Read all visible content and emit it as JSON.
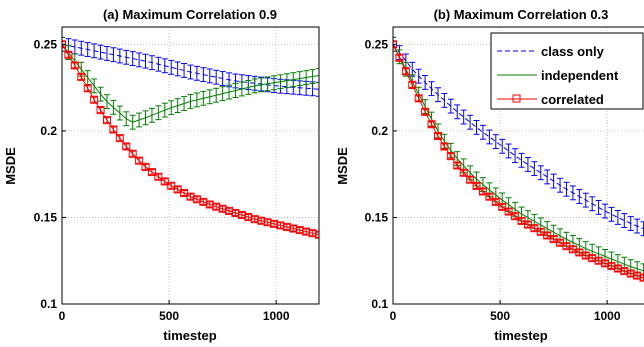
{
  "chart_data": [
    {
      "type": "line",
      "title": "(a) Maximum Correlation 0.9",
      "xlabel": "timestep",
      "ylabel": "MSDE",
      "xlim": [
        0,
        1200
      ],
      "ylim": [
        0.1,
        0.26
      ],
      "xticks": [
        0,
        500,
        1000
      ],
      "yticks": [
        0.1,
        0.15,
        0.2,
        0.25
      ],
      "ytick_labels": [
        "0.1",
        "0.15",
        "0.2",
        "0.25"
      ],
      "grid": true,
      "legend": null,
      "series": [
        {
          "name": "class only",
          "color": "#0000ff",
          "style": "dashed-errorbar",
          "x": [
            0,
            200,
            400,
            600,
            800,
            1000,
            1200
          ],
          "y": [
            0.25,
            0.245,
            0.24,
            0.234,
            0.229,
            0.226,
            0.224
          ],
          "err": 0.004
        },
        {
          "name": "independent",
          "color": "#008000",
          "style": "solid-errorbar",
          "x": [
            0,
            100,
            200,
            300,
            330,
            400,
            500,
            600,
            700,
            800,
            900,
            1000,
            1100,
            1200
          ],
          "y": [
            0.25,
            0.234,
            0.218,
            0.207,
            0.205,
            0.208,
            0.213,
            0.217,
            0.22,
            0.223,
            0.226,
            0.228,
            0.23,
            0.232
          ],
          "err": 0.004
        },
        {
          "name": "correlated",
          "color": "#ff0000",
          "style": "square-markers",
          "x": [
            0,
            50,
            100,
            150,
            200,
            250,
            300,
            350,
            400,
            500,
            600,
            700,
            800,
            900,
            1000,
            1100,
            1200
          ],
          "y": [
            0.25,
            0.24,
            0.229,
            0.218,
            0.208,
            0.199,
            0.191,
            0.184,
            0.178,
            0.169,
            0.162,
            0.157,
            0.153,
            0.149,
            0.146,
            0.143,
            0.14
          ],
          "err": 0.0015
        }
      ]
    },
    {
      "type": "line",
      "title": "(b) Maximum Correlation 0.3",
      "xlabel": "timestep",
      "ylabel": "MSDE",
      "xlim": [
        0,
        1200
      ],
      "ylim": [
        0.1,
        0.26
      ],
      "xticks": [
        0,
        500,
        1000
      ],
      "yticks": [
        0.1,
        0.15,
        0.2,
        0.25
      ],
      "ytick_labels": [
        "0.1",
        "0.15",
        "0.2",
        "0.25"
      ],
      "grid": true,
      "legend": "top-right",
      "series": [
        {
          "name": "class only",
          "color": "#0000ff",
          "style": "dashed-errorbar",
          "x": [
            0,
            100,
            200,
            300,
            400,
            500,
            600,
            700,
            800,
            900,
            1000,
            1100,
            1200
          ],
          "y": [
            0.25,
            0.234,
            0.222,
            0.211,
            0.201,
            0.192,
            0.183,
            0.175,
            0.167,
            0.16,
            0.153,
            0.147,
            0.142
          ],
          "err": 0.004
        },
        {
          "name": "independent",
          "color": "#008000",
          "style": "solid-errorbar",
          "x": [
            0,
            50,
            100,
            150,
            200,
            250,
            300,
            350,
            400,
            500,
            600,
            700,
            800,
            900,
            1000,
            1100,
            1200
          ],
          "y": [
            0.25,
            0.238,
            0.226,
            0.214,
            0.202,
            0.192,
            0.184,
            0.177,
            0.171,
            0.161,
            0.152,
            0.145,
            0.138,
            0.132,
            0.127,
            0.122,
            0.118
          ],
          "err": 0.004
        },
        {
          "name": "correlated",
          "color": "#ff0000",
          "style": "square-markers",
          "x": [
            0,
            50,
            100,
            150,
            200,
            250,
            300,
            350,
            400,
            500,
            600,
            700,
            800,
            900,
            1000,
            1100,
            1200
          ],
          "y": [
            0.25,
            0.237,
            0.224,
            0.211,
            0.199,
            0.189,
            0.18,
            0.173,
            0.167,
            0.157,
            0.148,
            0.141,
            0.134,
            0.128,
            0.123,
            0.118,
            0.114
          ],
          "err": 0.0015
        }
      ]
    }
  ]
}
